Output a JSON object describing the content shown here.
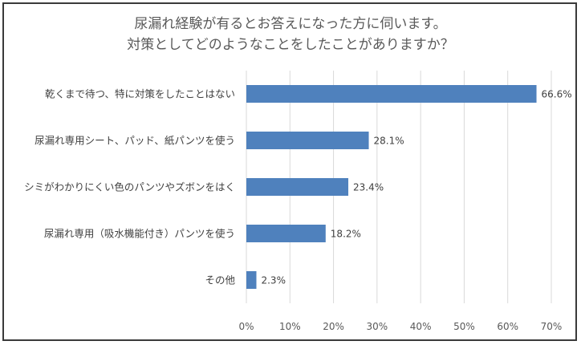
{
  "chart_data": {
    "type": "bar",
    "orientation": "horizontal",
    "title": [
      "尿漏れ経験が有るとお答えになった方に伺います。",
      "対策としてどのようなことをしたことがありますか？"
    ],
    "categories": [
      "乾くまで待つ、特に対策をしたことはない",
      "尿漏れ専用シート、パッド、紙パンツを使う",
      "シミがわかりにくい色のパンツやズボンをはく",
      "尿漏れ専用（吸水機能付き）パンツを使う",
      "その他"
    ],
    "values": [
      66.6,
      28.1,
      23.4,
      18.2,
      2.3
    ],
    "value_labels": [
      "66.6%",
      "28.1%",
      "23.4%",
      "18.2%",
      "2.3%"
    ],
    "xlim": [
      0,
      70
    ],
    "x_ticks": [
      "0%",
      "10%",
      "20%",
      "30%",
      "40%",
      "50%",
      "60%",
      "70%"
    ],
    "grid": true,
    "legend": "none",
    "bar_color": "#4f81bd",
    "grid_color": "#d9d9d9"
  }
}
